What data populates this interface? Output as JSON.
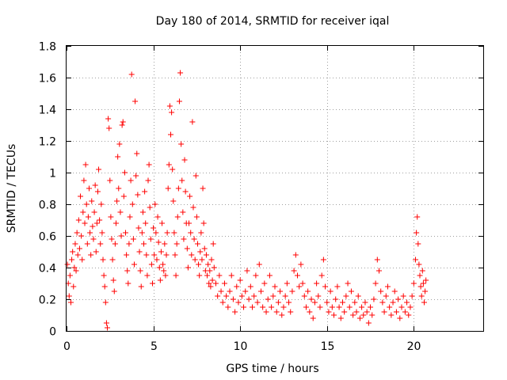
{
  "chart_data": {
    "type": "scatter",
    "title": "Day 180 of 2014, SRMTID for receiver iqal",
    "xlabel": "GPS time / hours",
    "ylabel": "SRMTID / TECUs",
    "xlim": [
      0,
      24
    ],
    "ylim": [
      0,
      1.8
    ],
    "xticks": [
      0,
      5,
      10,
      15,
      20
    ],
    "xtick_labels": [
      "0",
      "5",
      "10",
      "15",
      "20"
    ],
    "yticks": [
      0,
      0.2,
      0.4,
      0.6,
      0.8,
      1,
      1.2,
      1.4,
      1.6,
      1.8
    ],
    "ytick_labels": [
      "0",
      "0.2",
      "0.4",
      "0.6",
      "0.8",
      "1",
      "1.2",
      "1.4",
      "1.6",
      "1.8"
    ],
    "grid": true,
    "marker": "+",
    "color": "#ff0000",
    "series": [
      {
        "name": "SRMTID",
        "points": [
          [
            0.05,
            0.42
          ],
          [
            0.1,
            0.3
          ],
          [
            0.15,
            0.22
          ],
          [
            0.2,
            0.35
          ],
          [
            0.25,
            0.18
          ],
          [
            0.3,
            0.45
          ],
          [
            0.35,
            0.5
          ],
          [
            0.4,
            0.28
          ],
          [
            0.45,
            0.4
          ],
          [
            0.5,
            0.55
          ],
          [
            0.55,
            0.38
          ],
          [
            0.6,
            0.62
          ],
          [
            0.65,
            0.48
          ],
          [
            0.7,
            0.7
          ],
          [
            0.75,
            0.52
          ],
          [
            0.8,
            0.85
          ],
          [
            0.85,
            0.6
          ],
          [
            0.9,
            0.45
          ],
          [
            0.95,
            0.75
          ],
          [
            1.0,
            0.95
          ],
          [
            1.05,
            0.68
          ],
          [
            1.1,
            1.05
          ],
          [
            1.15,
            0.8
          ],
          [
            1.2,
            0.55
          ],
          [
            1.25,
            0.72
          ],
          [
            1.3,
            0.9
          ],
          [
            1.35,
            0.62
          ],
          [
            1.4,
            0.48
          ],
          [
            1.45,
            0.82
          ],
          [
            1.5,
            0.66
          ],
          [
            1.55,
            0.58
          ],
          [
            1.6,
            0.75
          ],
          [
            1.65,
            0.92
          ],
          [
            1.7,
            0.5
          ],
          [
            1.75,
            0.68
          ],
          [
            1.8,
            0.88
          ],
          [
            1.85,
            1.02
          ],
          [
            1.9,
            0.7
          ],
          [
            1.95,
            0.55
          ],
          [
            2.0,
            0.8
          ],
          [
            2.05,
            0.62
          ],
          [
            2.1,
            0.45
          ],
          [
            2.15,
            0.35
          ],
          [
            2.2,
            0.28
          ],
          [
            2.25,
            0.18
          ],
          [
            2.3,
            0.05
          ],
          [
            2.35,
            0.02
          ],
          [
            2.4,
            1.34
          ],
          [
            2.45,
            1.28
          ],
          [
            2.5,
            0.95
          ],
          [
            2.55,
            0.72
          ],
          [
            2.6,
            0.58
          ],
          [
            2.65,
            0.45
          ],
          [
            2.7,
            0.32
          ],
          [
            2.75,
            0.25
          ],
          [
            2.8,
            0.55
          ],
          [
            2.85,
            0.68
          ],
          [
            2.9,
            0.82
          ],
          [
            2.95,
            1.1
          ],
          [
            3.0,
            0.9
          ],
          [
            3.05,
            1.18
          ],
          [
            3.1,
            0.75
          ],
          [
            3.15,
            0.6
          ],
          [
            3.2,
            1.3
          ],
          [
            3.25,
            1.32
          ],
          [
            3.3,
            0.85
          ],
          [
            3.35,
            1.0
          ],
          [
            3.4,
            0.62
          ],
          [
            3.45,
            0.48
          ],
          [
            3.5,
            0.38
          ],
          [
            3.55,
            0.3
          ],
          [
            3.6,
            0.55
          ],
          [
            3.65,
            0.72
          ],
          [
            3.7,
            0.95
          ],
          [
            3.75,
            1.62
          ],
          [
            3.8,
            0.8
          ],
          [
            3.85,
            0.58
          ],
          [
            3.9,
            0.42
          ],
          [
            3.95,
            1.45
          ],
          [
            4.0,
            0.98
          ],
          [
            4.05,
            1.12
          ],
          [
            4.1,
            0.86
          ],
          [
            4.15,
            0.65
          ],
          [
            4.2,
            0.5
          ],
          [
            4.25,
            0.38
          ],
          [
            4.3,
            0.28
          ],
          [
            4.35,
            0.62
          ],
          [
            4.4,
            0.75
          ],
          [
            4.45,
            0.55
          ],
          [
            4.5,
            0.88
          ],
          [
            4.55,
            0.68
          ],
          [
            4.6,
            0.48
          ],
          [
            4.65,
            0.35
          ],
          [
            4.7,
            0.95
          ],
          [
            4.75,
            1.05
          ],
          [
            4.8,
            0.78
          ],
          [
            4.85,
            0.58
          ],
          [
            4.9,
            0.42
          ],
          [
            4.95,
            0.3
          ],
          [
            5.0,
            0.65
          ],
          [
            5.05,
            0.48
          ],
          [
            5.1,
            0.8
          ],
          [
            5.15,
            0.62
          ],
          [
            5.2,
            0.45
          ],
          [
            5.25,
            0.72
          ],
          [
            5.3,
            0.56
          ],
          [
            5.35,
            0.4
          ],
          [
            5.4,
            0.32
          ],
          [
            5.45,
            0.5
          ],
          [
            5.5,
            0.68
          ],
          [
            5.55,
            0.42
          ],
          [
            5.6,
            0.38
          ],
          [
            5.65,
            0.55
          ],
          [
            5.7,
            0.35
          ],
          [
            5.75,
            0.48
          ],
          [
            5.8,
            0.62
          ],
          [
            5.85,
            0.9
          ],
          [
            5.9,
            1.05
          ],
          [
            5.95,
            1.42
          ],
          [
            6.0,
            1.24
          ],
          [
            6.05,
            1.38
          ],
          [
            6.1,
            1.02
          ],
          [
            6.15,
            0.82
          ],
          [
            6.2,
            0.62
          ],
          [
            6.25,
            0.48
          ],
          [
            6.3,
            0.35
          ],
          [
            6.35,
            0.55
          ],
          [
            6.4,
            0.72
          ],
          [
            6.45,
            0.9
          ],
          [
            6.5,
            1.45
          ],
          [
            6.55,
            1.63
          ],
          [
            6.6,
            1.18
          ],
          [
            6.65,
            0.95
          ],
          [
            6.7,
            0.75
          ],
          [
            6.75,
            0.58
          ],
          [
            6.8,
            1.08
          ],
          [
            6.85,
            0.88
          ],
          [
            6.9,
            0.68
          ],
          [
            6.95,
            0.52
          ],
          [
            7.0,
            0.4
          ],
          [
            7.05,
            0.68
          ],
          [
            7.1,
            0.85
          ],
          [
            7.15,
            0.62
          ],
          [
            7.2,
            0.48
          ],
          [
            7.25,
            1.32
          ],
          [
            7.3,
            0.78
          ],
          [
            7.35,
            0.58
          ],
          [
            7.4,
            0.45
          ],
          [
            7.45,
            0.98
          ],
          [
            7.5,
            0.72
          ],
          [
            7.55,
            0.55
          ],
          [
            7.6,
            0.42
          ],
          [
            7.65,
            0.35
          ],
          [
            7.7,
            0.5
          ],
          [
            7.75,
            0.62
          ],
          [
            7.8,
            0.45
          ],
          [
            7.85,
            0.9
          ],
          [
            7.9,
            0.68
          ],
          [
            7.95,
            0.52
          ],
          [
            8.0,
            0.38
          ],
          [
            8.05,
            0.48
          ],
          [
            8.1,
            0.35
          ],
          [
            8.15,
            0.42
          ],
          [
            8.2,
            0.3
          ],
          [
            8.25,
            0.38
          ],
          [
            8.3,
            0.28
          ],
          [
            8.35,
            0.45
          ],
          [
            8.4,
            0.32
          ],
          [
            8.45,
            0.55
          ],
          [
            8.5,
            0.4
          ],
          [
            8.6,
            0.3
          ],
          [
            8.7,
            0.22
          ],
          [
            8.8,
            0.35
          ],
          [
            8.9,
            0.25
          ],
          [
            9.0,
            0.18
          ],
          [
            9.1,
            0.3
          ],
          [
            9.2,
            0.22
          ],
          [
            9.3,
            0.15
          ],
          [
            9.4,
            0.25
          ],
          [
            9.5,
            0.35
          ],
          [
            9.6,
            0.2
          ],
          [
            9.7,
            0.12
          ],
          [
            9.8,
            0.28
          ],
          [
            9.9,
            0.18
          ],
          [
            10.0,
            0.32
          ],
          [
            10.1,
            0.22
          ],
          [
            10.2,
            0.15
          ],
          [
            10.3,
            0.25
          ],
          [
            10.4,
            0.38
          ],
          [
            10.5,
            0.2
          ],
          [
            10.6,
            0.28
          ],
          [
            10.7,
            0.15
          ],
          [
            10.8,
            0.22
          ],
          [
            10.9,
            0.35
          ],
          [
            11.0,
            0.18
          ],
          [
            11.1,
            0.42
          ],
          [
            11.2,
            0.25
          ],
          [
            11.3,
            0.15
          ],
          [
            11.4,
            0.3
          ],
          [
            11.5,
            0.12
          ],
          [
            11.6,
            0.2
          ],
          [
            11.7,
            0.35
          ],
          [
            11.8,
            0.15
          ],
          [
            11.9,
            0.22
          ],
          [
            12.0,
            0.28
          ],
          [
            12.1,
            0.12
          ],
          [
            12.2,
            0.18
          ],
          [
            12.3,
            0.25
          ],
          [
            12.4,
            0.1
          ],
          [
            12.5,
            0.15
          ],
          [
            12.6,
            0.22
          ],
          [
            12.7,
            0.3
          ],
          [
            12.8,
            0.18
          ],
          [
            12.9,
            0.12
          ],
          [
            13.0,
            0.25
          ],
          [
            13.1,
            0.38
          ],
          [
            13.2,
            0.48
          ],
          [
            13.3,
            0.35
          ],
          [
            13.4,
            0.28
          ],
          [
            13.5,
            0.42
          ],
          [
            13.6,
            0.3
          ],
          [
            13.7,
            0.22
          ],
          [
            13.8,
            0.15
          ],
          [
            13.9,
            0.25
          ],
          [
            14.0,
            0.12
          ],
          [
            14.1,
            0.2
          ],
          [
            14.2,
            0.08
          ],
          [
            14.3,
            0.18
          ],
          [
            14.4,
            0.3
          ],
          [
            14.5,
            0.22
          ],
          [
            14.6,
            0.15
          ],
          [
            14.7,
            0.35
          ],
          [
            14.8,
            0.45
          ],
          [
            14.9,
            0.28
          ],
          [
            15.0,
            0.18
          ],
          [
            15.1,
            0.12
          ],
          [
            15.2,
            0.25
          ],
          [
            15.3,
            0.15
          ],
          [
            15.4,
            0.1
          ],
          [
            15.5,
            0.2
          ],
          [
            15.6,
            0.28
          ],
          [
            15.7,
            0.15
          ],
          [
            15.8,
            0.08
          ],
          [
            15.9,
            0.18
          ],
          [
            16.0,
            0.12
          ],
          [
            16.1,
            0.22
          ],
          [
            16.2,
            0.3
          ],
          [
            16.3,
            0.15
          ],
          [
            16.4,
            0.25
          ],
          [
            16.5,
            0.1
          ],
          [
            16.6,
            0.18
          ],
          [
            16.7,
            0.12
          ],
          [
            16.8,
            0.22
          ],
          [
            16.9,
            0.08
          ],
          [
            17.0,
            0.15
          ],
          [
            17.1,
            0.1
          ],
          [
            17.2,
            0.18
          ],
          [
            17.3,
            0.12
          ],
          [
            17.4,
            0.05
          ],
          [
            17.5,
            0.15
          ],
          [
            17.6,
            0.1
          ],
          [
            17.7,
            0.2
          ],
          [
            17.8,
            0.3
          ],
          [
            17.9,
            0.45
          ],
          [
            18.0,
            0.38
          ],
          [
            18.1,
            0.25
          ],
          [
            18.2,
            0.18
          ],
          [
            18.3,
            0.12
          ],
          [
            18.4,
            0.22
          ],
          [
            18.5,
            0.28
          ],
          [
            18.6,
            0.15
          ],
          [
            18.7,
            0.1
          ],
          [
            18.8,
            0.18
          ],
          [
            18.9,
            0.25
          ],
          [
            19.0,
            0.12
          ],
          [
            19.1,
            0.2
          ],
          [
            19.2,
            0.08
          ],
          [
            19.3,
            0.15
          ],
          [
            19.4,
            0.22
          ],
          [
            19.5,
            0.12
          ],
          [
            19.6,
            0.18
          ],
          [
            19.7,
            0.1
          ],
          [
            19.8,
            0.15
          ],
          [
            19.9,
            0.22
          ],
          [
            20.0,
            0.3
          ],
          [
            20.1,
            0.45
          ],
          [
            20.15,
            0.62
          ],
          [
            20.2,
            0.72
          ],
          [
            20.25,
            0.55
          ],
          [
            20.3,
            0.42
          ],
          [
            20.35,
            0.35
          ],
          [
            20.4,
            0.28
          ],
          [
            20.45,
            0.22
          ],
          [
            20.5,
            0.38
          ],
          [
            20.55,
            0.3
          ],
          [
            20.6,
            0.18
          ],
          [
            20.65,
            0.25
          ],
          [
            20.7,
            0.32
          ]
        ]
      }
    ]
  }
}
